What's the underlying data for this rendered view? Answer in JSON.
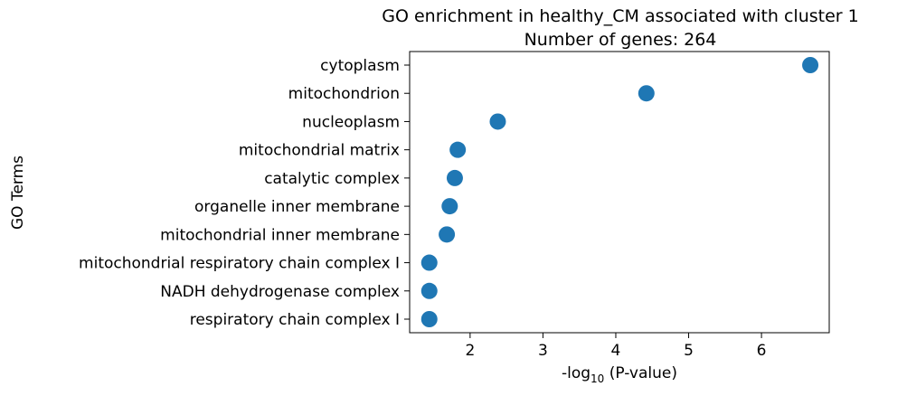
{
  "chart_data": {
    "type": "scatter",
    "title": "GO enrichment in healthy_CM associated with cluster 1",
    "subtitle": "Number of genes: 264",
    "xlabel": {
      "prefix": "-log",
      "subscript": "10",
      "suffix": " (P-value)"
    },
    "ylabel": "GO Terms",
    "xlim": [
      1.17,
      6.93
    ],
    "xticks": [
      2,
      3,
      4,
      5,
      6
    ],
    "grid": false,
    "legend": "none",
    "marker_color": "#1f77b4",
    "categories": [
      "cytoplasm",
      "mitochondrion",
      "nucleoplasm",
      "mitochondrial matrix",
      "catalytic complex",
      "organelle inner membrane",
      "mitochondrial inner membrane",
      "mitochondrial respiratory chain complex I",
      "NADH dehydrogenase complex",
      "respiratory chain complex I"
    ],
    "values": [
      6.67,
      4.42,
      2.38,
      1.83,
      1.79,
      1.72,
      1.68,
      1.44,
      1.44,
      1.44
    ]
  }
}
